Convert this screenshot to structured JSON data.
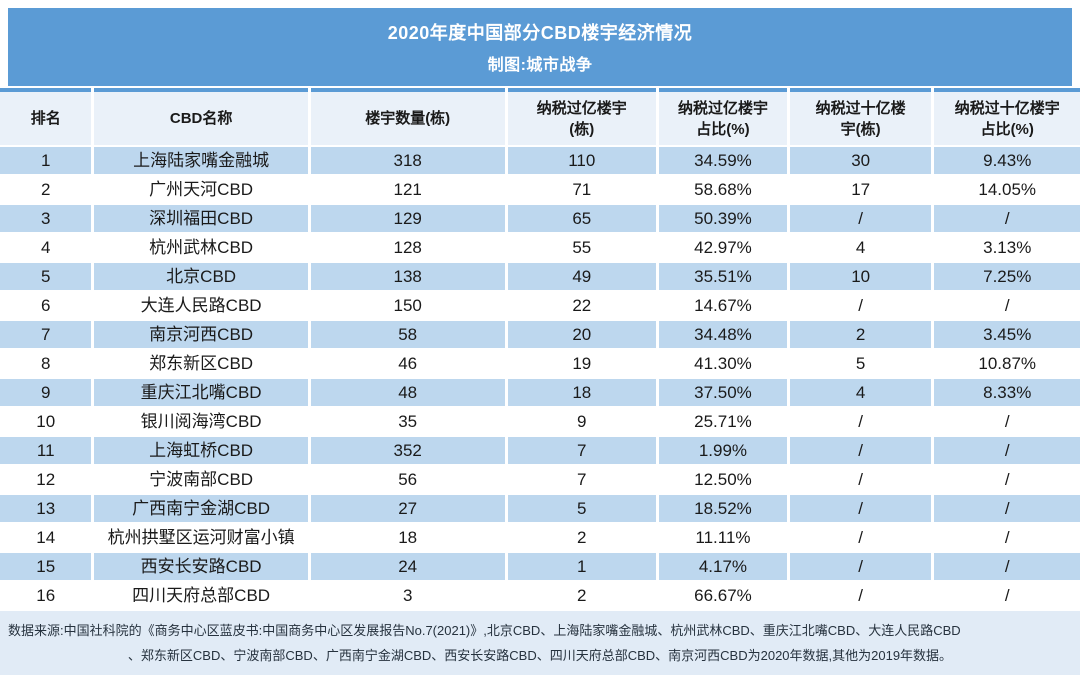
{
  "title": {
    "line1": "2020年度中国部分CBD楼宇经济情况",
    "line2": "制图:城市战争"
  },
  "chart_data": {
    "type": "table",
    "title": "2020年度中国部分CBD楼宇经济情况",
    "subtitle": "制图:城市战争",
    "columns": [
      "排名",
      "CBD名称",
      "楼宇数量(栋)",
      "纳税过亿楼宇(栋)",
      "纳税过亿楼宇占比(%)",
      "纳税过十亿楼宇(栋)",
      "纳税过十亿楼宇占比(%)"
    ],
    "column_lines": [
      [
        "排名"
      ],
      [
        "CBD名称"
      ],
      [
        "楼宇数量(栋)"
      ],
      [
        "纳税过亿楼宇",
        "(栋)"
      ],
      [
        "纳税过亿楼宇",
        "占比(%)"
      ],
      [
        "纳税过十亿楼",
        "宇(栋)"
      ],
      [
        "纳税过十亿楼宇",
        "占比(%)"
      ]
    ],
    "rows": [
      [
        "1",
        "上海陆家嘴金融城",
        "318",
        "110",
        "34.59%",
        "30",
        "9.43%"
      ],
      [
        "2",
        "广州天河CBD",
        "121",
        "71",
        "58.68%",
        "17",
        "14.05%"
      ],
      [
        "3",
        "深圳福田CBD",
        "129",
        "65",
        "50.39%",
        "/",
        "/"
      ],
      [
        "4",
        "杭州武林CBD",
        "128",
        "55",
        "42.97%",
        "4",
        "3.13%"
      ],
      [
        "5",
        "北京CBD",
        "138",
        "49",
        "35.51%",
        "10",
        "7.25%"
      ],
      [
        "6",
        "大连人民路CBD",
        "150",
        "22",
        "14.67%",
        "/",
        "/"
      ],
      [
        "7",
        "南京河西CBD",
        "58",
        "20",
        "34.48%",
        "2",
        "3.45%"
      ],
      [
        "8",
        "郑东新区CBD",
        "46",
        "19",
        "41.30%",
        "5",
        "10.87%"
      ],
      [
        "9",
        "重庆江北嘴CBD",
        "48",
        "18",
        "37.50%",
        "4",
        "8.33%"
      ],
      [
        "10",
        "银川阅海湾CBD",
        "35",
        "9",
        "25.71%",
        "/",
        "/"
      ],
      [
        "11",
        "上海虹桥CBD",
        "352",
        "7",
        "1.99%",
        "/",
        "/"
      ],
      [
        "12",
        "宁波南部CBD",
        "56",
        "7",
        "12.50%",
        "/",
        "/"
      ],
      [
        "13",
        "广西南宁金湖CBD",
        "27",
        "5",
        "18.52%",
        "/",
        "/"
      ],
      [
        "14",
        "杭州拱墅区运河财富小镇",
        "18",
        "2",
        "11.11%",
        "/",
        "/"
      ],
      [
        "15",
        "西安长安路CBD",
        "24",
        "1",
        "4.17%",
        "/",
        "/"
      ],
      [
        "16",
        "四川天府总部CBD",
        "3",
        "2",
        "66.67%",
        "/",
        "/"
      ]
    ]
  },
  "footer": {
    "line1": "数据来源:中国社科院的《商务中心区蓝皮书:中国商务中心区发展报告No.7(2021)》,北京CBD、上海陆家嘴金融城、杭州武林CBD、重庆江北嘴CBD、大连人民路CBD",
    "line2": "、郑东新区CBD、宁波南部CBD、广西南宁金湖CBD、西安长安路CBD、四川天府总部CBD、南京河西CBD为2020年数据,其他为2019年数据。"
  },
  "colors": {
    "banner_bg": "#5B9BD5",
    "header_row_bg": "#EAF1F9",
    "alt_row_bg": "#BDD7EE",
    "row_bg": "#FFFFFF",
    "footer_bg": "#E1EBF6",
    "banner_text": "#FFFFFF",
    "body_text": "#1A1A1A",
    "table_top_border": "#5B9BD5"
  }
}
